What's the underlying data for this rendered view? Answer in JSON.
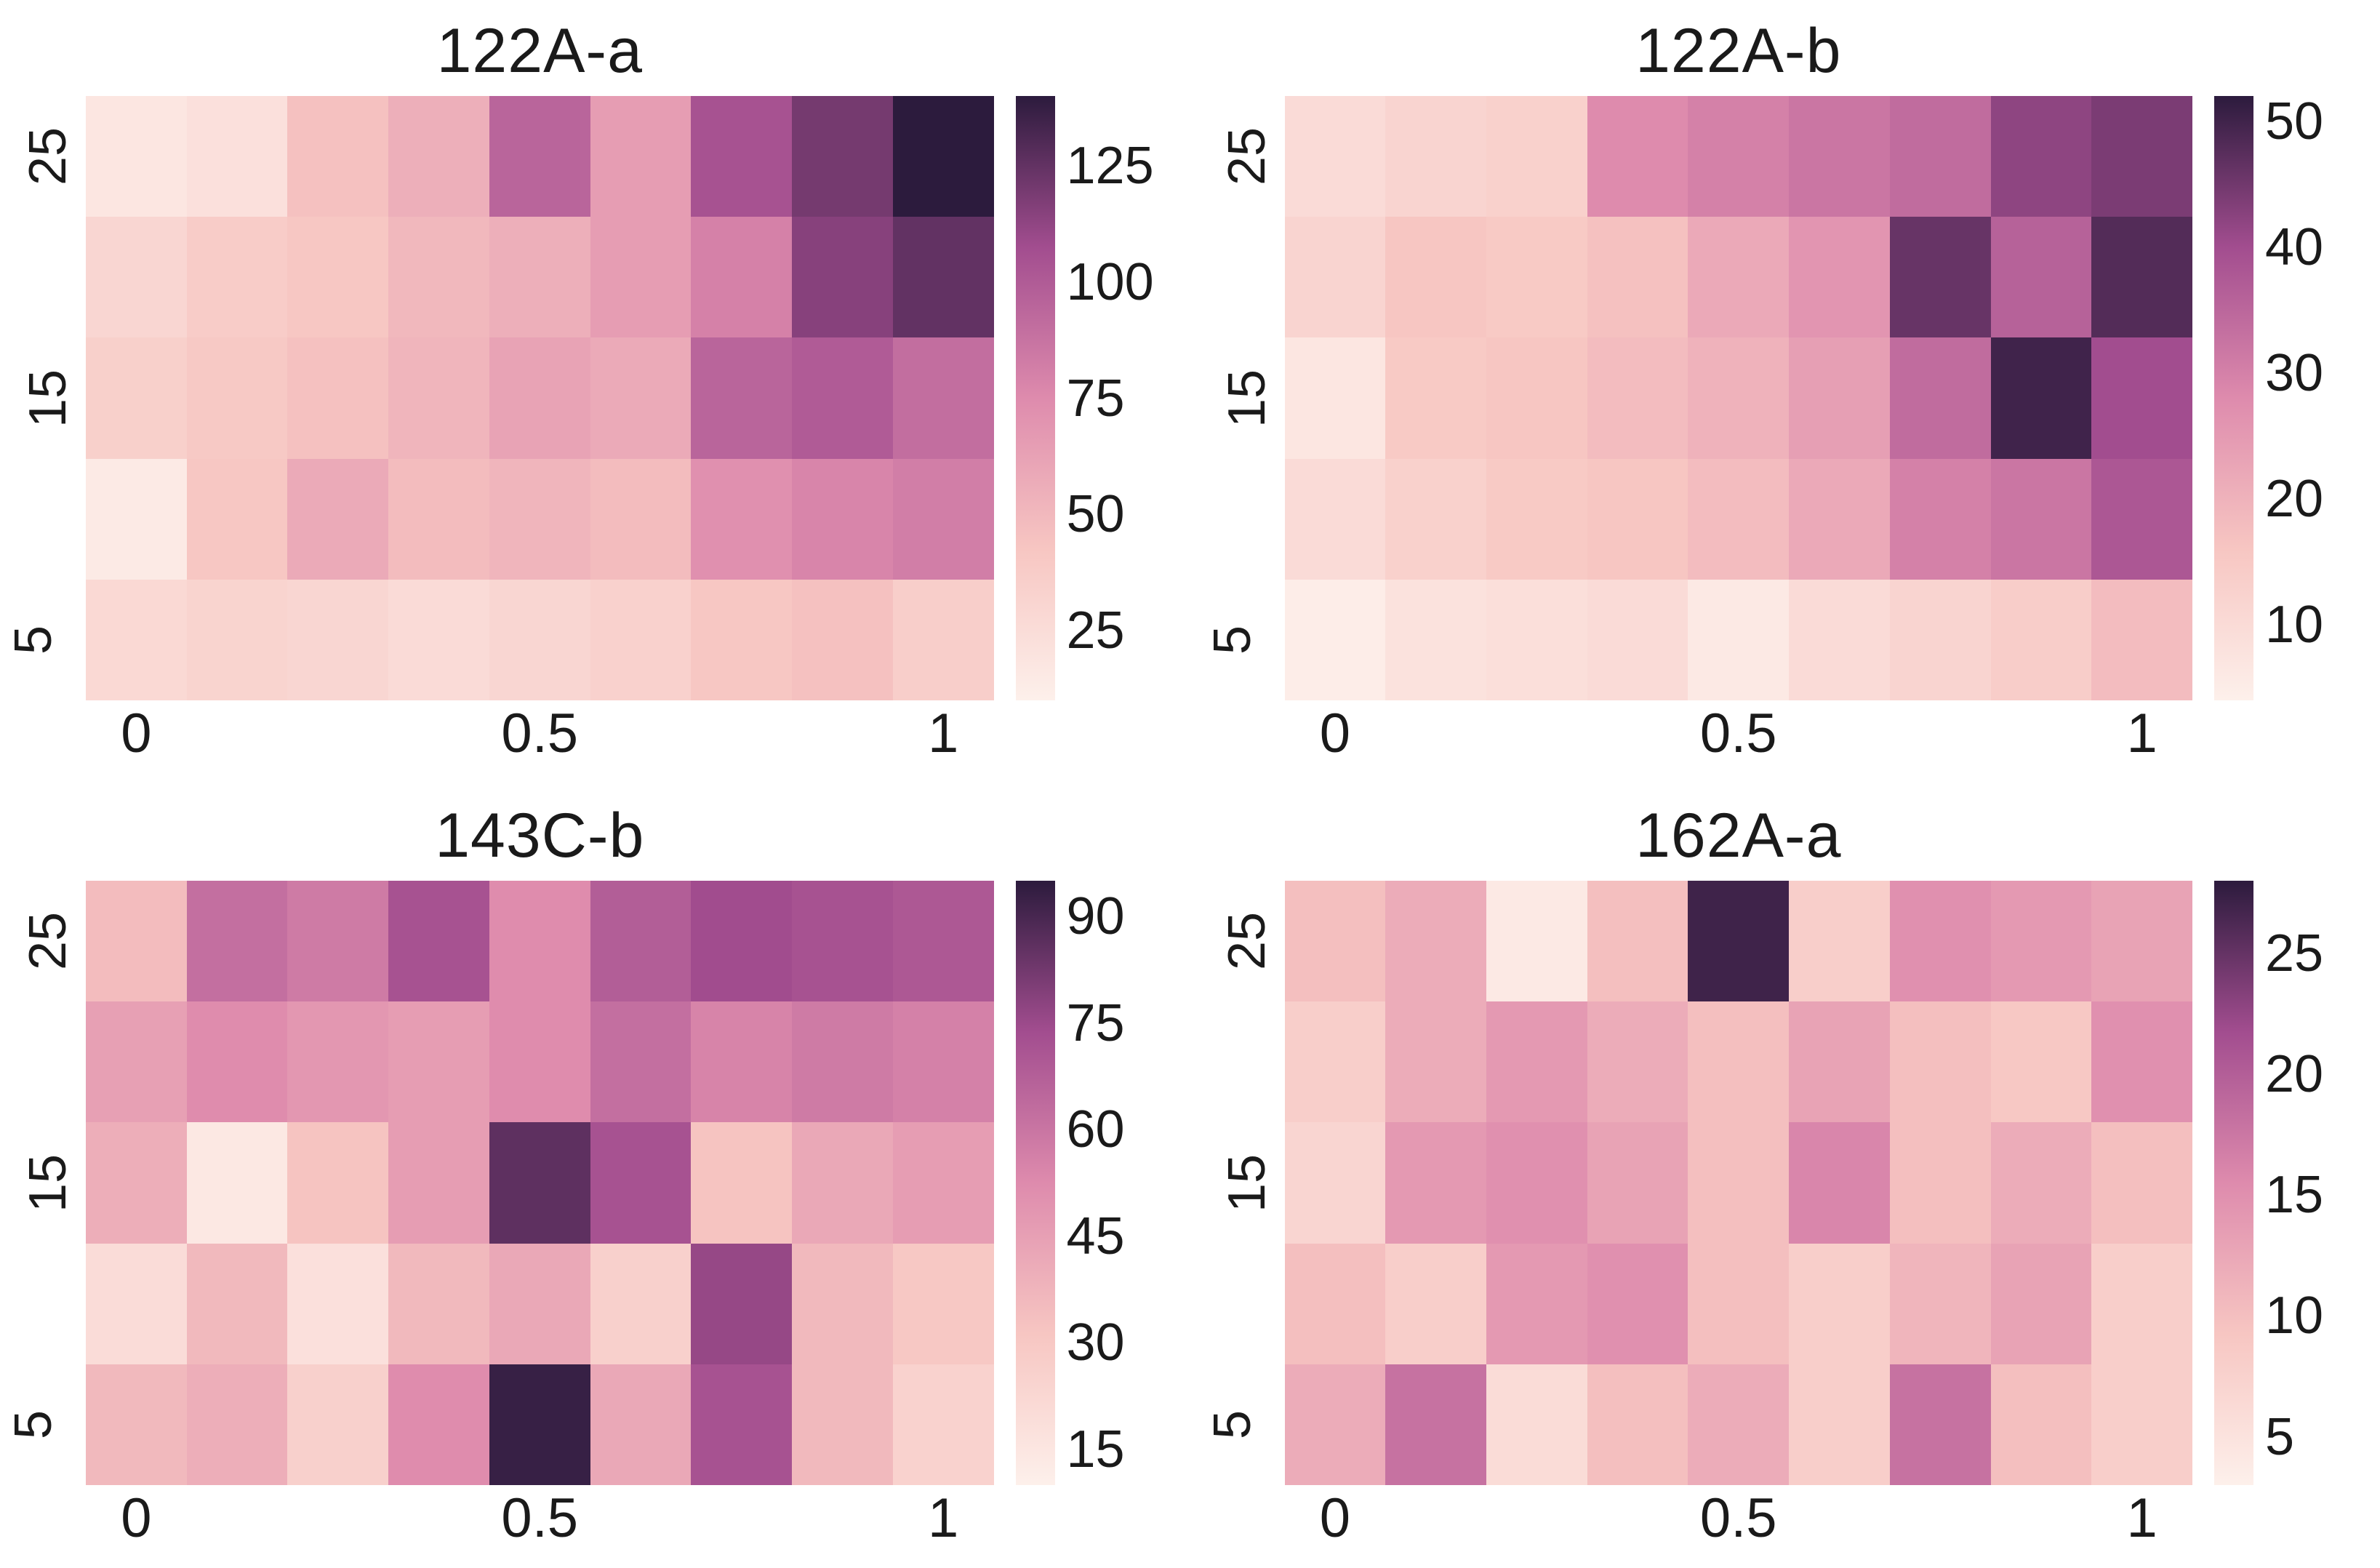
{
  "figure": {
    "background": "#ffffff",
    "text_color": "#1a1a1a"
  },
  "colormap": {
    "name": "RdPu-like",
    "stops": [
      {
        "t": 0.0,
        "color": "#fdf0eb"
      },
      {
        "t": 0.25,
        "color": "#f7c6c2"
      },
      {
        "t": 0.5,
        "color": "#de8bad"
      },
      {
        "t": 0.75,
        "color": "#a24d8f"
      },
      {
        "t": 1.0,
        "color": "#2c1b3d"
      }
    ]
  },
  "chart_data": [
    {
      "type": "heatmap",
      "title": "122A-a",
      "xlabel": "",
      "ylabel": "",
      "col_x_values": [
        0,
        0.125,
        0.25,
        0.375,
        0.5,
        0.625,
        0.75,
        0.875,
        1
      ],
      "row_y_values": [
        25,
        20,
        15,
        10,
        5
      ],
      "x_tick_labels": [
        "0",
        "0.5",
        "1"
      ],
      "x_tick_cols": [
        0,
        4,
        8
      ],
      "y_tick_labels": [
        "25",
        "15",
        "5"
      ],
      "y_tick_rows": [
        0,
        2,
        4
      ],
      "vmin": 10,
      "vmax": 140,
      "colorbar_ticks": [
        25,
        50,
        75,
        100,
        125
      ],
      "rows": [
        [
          18,
          22,
          45,
          55,
          95,
          65,
          105,
          120,
          140
        ],
        [
          30,
          38,
          42,
          50,
          55,
          65,
          80,
          115,
          125
        ],
        [
          35,
          40,
          45,
          52,
          62,
          58,
          95,
          100,
          90
        ],
        [
          15,
          42,
          58,
          48,
          52,
          48,
          72,
          78,
          82
        ],
        [
          28,
          32,
          30,
          26,
          30,
          34,
          42,
          45,
          36
        ]
      ]
    },
    {
      "type": "heatmap",
      "title": "122A-b",
      "xlabel": "",
      "ylabel": "",
      "col_x_values": [
        0,
        0.125,
        0.25,
        0.375,
        0.5,
        0.625,
        0.75,
        0.875,
        1
      ],
      "row_y_values": [
        25,
        20,
        15,
        10,
        5
      ],
      "x_tick_labels": [
        "0",
        "0.5",
        "1"
      ],
      "x_tick_cols": [
        0,
        4,
        8
      ],
      "y_tick_labels": [
        "25",
        "15",
        "5"
      ],
      "y_tick_rows": [
        0,
        2,
        4
      ],
      "vmin": 4,
      "vmax": 52,
      "colorbar_ticks": [
        10,
        20,
        30,
        40,
        50
      ],
      "rows": [
        [
          10,
          12,
          13,
          28,
          30,
          32,
          34,
          42,
          44
        ],
        [
          12,
          16,
          15,
          17,
          22,
          26,
          46,
          36,
          48
        ],
        [
          7,
          15,
          16,
          18,
          20,
          24,
          34,
          50,
          40
        ],
        [
          10,
          13,
          15,
          16,
          18,
          22,
          30,
          32,
          38
        ],
        [
          5,
          8,
          9,
          10,
          6,
          10,
          12,
          14,
          18
        ]
      ]
    },
    {
      "type": "heatmap",
      "title": "143C-b",
      "xlabel": "",
      "ylabel": "",
      "col_x_values": [
        0,
        0.125,
        0.25,
        0.375,
        0.5,
        0.625,
        0.75,
        0.875,
        1
      ],
      "row_y_values": [
        25,
        20,
        15,
        10,
        5
      ],
      "x_tick_labels": [
        "0",
        "0.5",
        "1"
      ],
      "x_tick_cols": [
        0,
        4,
        8
      ],
      "y_tick_labels": [
        "25",
        "15",
        "5"
      ],
      "y_tick_rows": [
        0,
        2,
        4
      ],
      "vmin": 10,
      "vmax": 95,
      "colorbar_ticks": [
        15,
        30,
        45,
        60,
        75,
        90
      ],
      "rows": [
        [
          35,
          62,
          58,
          72,
          52,
          68,
          74,
          72,
          70
        ],
        [
          45,
          52,
          48,
          46,
          52,
          62,
          55,
          58,
          56
        ],
        [
          40,
          14,
          32,
          46,
          86,
          72,
          32,
          42,
          46
        ],
        [
          20,
          36,
          18,
          36,
          42,
          26,
          76,
          36,
          30
        ],
        [
          36,
          40,
          26,
          52,
          93,
          42,
          72,
          36,
          25
        ]
      ]
    },
    {
      "type": "heatmap",
      "title": "162A-a",
      "xlabel": "",
      "ylabel": "",
      "col_x_values": [
        0,
        0.125,
        0.25,
        0.375,
        0.5,
        0.625,
        0.75,
        0.875,
        1
      ],
      "row_y_values": [
        25,
        20,
        15,
        10,
        5
      ],
      "x_tick_labels": [
        "0",
        "0.5",
        "1"
      ],
      "x_tick_cols": [
        0,
        4,
        8
      ],
      "y_tick_labels": [
        "25",
        "15",
        "5"
      ],
      "y_tick_rows": [
        0,
        2,
        4
      ],
      "vmin": 3,
      "vmax": 28,
      "colorbar_ticks": [
        5,
        10,
        15,
        20,
        25
      ],
      "rows": [
        [
          10,
          12,
          4,
          10,
          27,
          8,
          15,
          14,
          13
        ],
        [
          8,
          12,
          14,
          12,
          10,
          13,
          10,
          9,
          15
        ],
        [
          7,
          14,
          15,
          13,
          10,
          16,
          10,
          12,
          10
        ],
        [
          10,
          8,
          14,
          15,
          10,
          8,
          11,
          13,
          8
        ],
        [
          12,
          18,
          6,
          10,
          12,
          8,
          18,
          10,
          8
        ]
      ]
    }
  ]
}
